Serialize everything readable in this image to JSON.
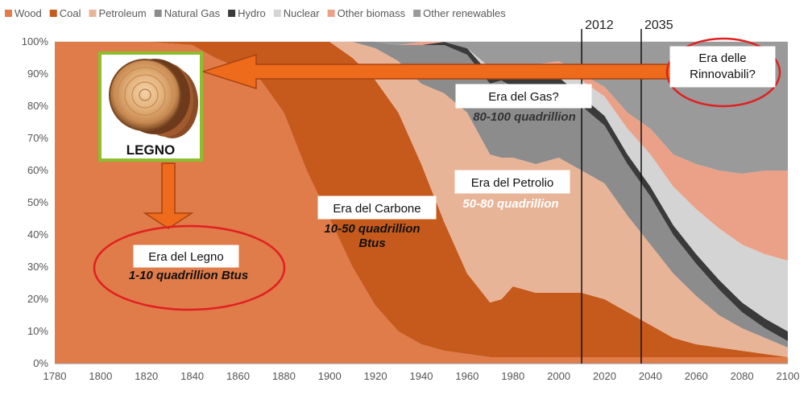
{
  "chart_data": {
    "type": "area",
    "stacked": true,
    "normalized_percent": true,
    "x": [
      1780,
      1800,
      1820,
      1840,
      1850,
      1860,
      1870,
      1880,
      1890,
      1900,
      1910,
      1920,
      1930,
      1940,
      1950,
      1960,
      1970,
      1975,
      1980,
      1990,
      2000,
      2010,
      2020,
      2030,
      2040,
      2050,
      2060,
      2070,
      2080,
      2090,
      2100
    ],
    "series": [
      {
        "name": "Wood",
        "color": "#e07b4a",
        "values": [
          100,
          100,
          100,
          99,
          95,
          92,
          88,
          78,
          60,
          45,
          30,
          18,
          10,
          6,
          4,
          3,
          2,
          2,
          2,
          2,
          2,
          2,
          2,
          2,
          2,
          2,
          2,
          2,
          2,
          2,
          2
        ]
      },
      {
        "name": "Coal",
        "color": "#c55a1c",
        "values": [
          0,
          0,
          0,
          1,
          5,
          8,
          12,
          22,
          40,
          55,
          65,
          70,
          68,
          56,
          40,
          25,
          17,
          18,
          22,
          20,
          20,
          20,
          18,
          14,
          10,
          6,
          4,
          3,
          2,
          1,
          0
        ]
      },
      {
        "name": "Petroleum",
        "color": "#e8b497",
        "values": [
          0,
          0,
          0,
          0,
          0,
          0,
          0,
          0,
          0,
          0,
          5,
          10,
          16,
          25,
          40,
          50,
          46,
          44,
          40,
          40,
          42,
          38,
          36,
          30,
          25,
          20,
          15,
          10,
          7,
          5,
          3
        ]
      },
      {
        "name": "Natural Gas",
        "color": "#8c8c8c",
        "values": [
          0,
          0,
          0,
          0,
          0,
          0,
          0,
          0,
          0,
          0,
          0,
          2,
          5,
          12,
          15,
          18,
          22,
          24,
          22,
          24,
          22,
          20,
          18,
          16,
          15,
          12,
          10,
          8,
          5,
          3,
          2
        ]
      },
      {
        "name": "Hydro",
        "color": "#3a3a3a",
        "values": [
          0,
          0,
          0,
          0,
          0,
          0,
          0,
          0,
          0,
          0,
          0,
          0,
          0,
          0,
          1,
          2,
          3,
          3,
          3,
          3,
          3,
          3,
          3,
          3,
          3,
          3,
          3,
          3,
          3,
          3,
          3
        ]
      },
      {
        "name": "Nuclear",
        "color": "#d4d4d4",
        "values": [
          0,
          0,
          0,
          0,
          0,
          0,
          0,
          0,
          0,
          0,
          0,
          0,
          0,
          0,
          0,
          0,
          2,
          2,
          3,
          4,
          4,
          5,
          6,
          8,
          10,
          12,
          14,
          16,
          18,
          20,
          22
        ]
      },
      {
        "name": "Other biomass",
        "color": "#eba188",
        "values": [
          0,
          0,
          0,
          0,
          0,
          0,
          0,
          0,
          0,
          0,
          0,
          0,
          0,
          1,
          0,
          0,
          0,
          0,
          0,
          0,
          1,
          2,
          3,
          5,
          8,
          10,
          14,
          18,
          22,
          26,
          28
        ]
      },
      {
        "name": "Other renewables",
        "color": "#9a9a9a",
        "values": [
          0,
          0,
          0,
          0,
          0,
          0,
          0,
          0,
          0,
          0,
          0,
          0,
          1,
          0,
          0,
          2,
          8,
          7,
          8,
          7,
          6,
          10,
          14,
          22,
          27,
          35,
          38,
          40,
          41,
          40,
          40
        ]
      }
    ],
    "xlim": [
      1780,
      2100
    ],
    "ylim": [
      0,
      100
    ],
    "x_ticks": [
      "1780",
      "1800",
      "1820",
      "1840",
      "1860",
      "1880",
      "1900",
      "1920",
      "1940",
      "1960",
      "1980",
      "2000",
      "2020",
      "2040",
      "2060",
      "2080",
      "2100"
    ],
    "y_ticks": [
      "0%",
      "10%",
      "20%",
      "30%",
      "40%",
      "50%",
      "60%",
      "70%",
      "80%",
      "90%",
      "100%"
    ],
    "legend_position": "top-left",
    "grid": true,
    "vertical_markers": [
      {
        "label": "2012",
        "x": 2010
      },
      {
        "label": "2035",
        "x": 2036
      }
    ],
    "annotations": [
      {
        "id": "gas",
        "title": "Era del Gas?",
        "subtitle": "80-100 quadrillion",
        "subtitle_color": "#333333",
        "at": [
          1995,
          84
        ]
      },
      {
        "id": "petrolio",
        "title": "Era del Petrolio",
        "subtitle": "50-80 quadrillion",
        "subtitle_color": "#ffffff",
        "at": [
          1995,
          56
        ]
      },
      {
        "id": "carbone",
        "title": "Era del Carbone",
        "subtitle": "10-50 quadrillion",
        "subtitle2": "Btus",
        "subtitle_color": "#111111",
        "at": [
          1914,
          48
        ]
      },
      {
        "id": "legno",
        "title": "Era del Legno",
        "subtitle": "1-10 quadrillion Btus",
        "subtitle_color": "#111111",
        "at": [
          1828,
          31
        ]
      },
      {
        "id": "rinnovabili",
        "title": "Era delle",
        "title2": "Rinnovabili?",
        "at": [
          2075,
          92
        ]
      }
    ],
    "image_label": "LEGNO"
  }
}
